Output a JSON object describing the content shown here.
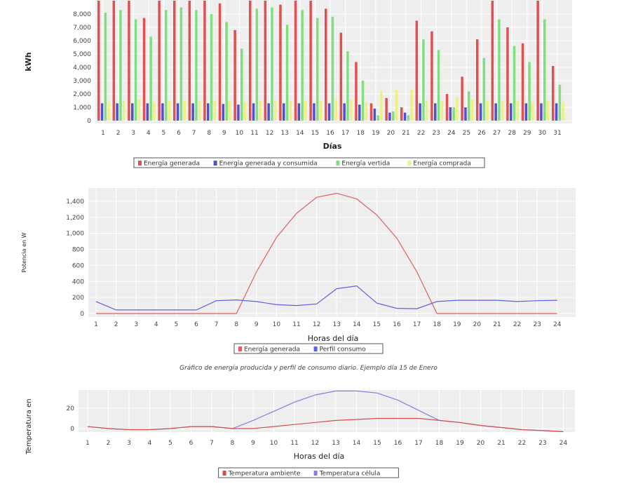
{
  "chart_data": [
    {
      "type": "bar",
      "xlabel": "Días",
      "ylabel": "kWh",
      "ylim": [
        0,
        9000
      ],
      "yticks": [
        "0",
        "1,000",
        "2,000",
        "3,000",
        "4,000",
        "5,000",
        "6,000",
        "7,000",
        "8,000"
      ],
      "categories": [
        "1",
        "2",
        "3",
        "4",
        "5",
        "6",
        "7",
        "8",
        "9",
        "10",
        "11",
        "12",
        "13",
        "14",
        "15",
        "16",
        "17",
        "18",
        "19",
        "20",
        "21",
        "22",
        "23",
        "24",
        "25",
        "26",
        "27",
        "28",
        "29",
        "30",
        "31"
      ],
      "series": [
        {
          "name": "Energía generada",
          "color": "#e05050",
          "values": [
            9000,
            9000,
            9000,
            7700,
            9000,
            9000,
            9000,
            9000,
            8800,
            6800,
            9000,
            9000,
            8700,
            9000,
            9000,
            8400,
            6600,
            4400,
            1300,
            1700,
            1000,
            7500,
            6700,
            2000,
            3300,
            6100,
            9000,
            7000,
            5800,
            9000,
            4100
          ]
        },
        {
          "name": "Energía generada y consumida",
          "color": "#5050d0",
          "values": [
            1300,
            1300,
            1300,
            1300,
            1300,
            1300,
            1300,
            1300,
            1250,
            1200,
            1300,
            1300,
            1300,
            1300,
            1300,
            1300,
            1300,
            1200,
            900,
            600,
            600,
            1300,
            1300,
            1000,
            1000,
            1300,
            1300,
            1300,
            1300,
            1300,
            1300
          ]
        },
        {
          "name": "Energía vertida",
          "color": "#80e080",
          "values": [
            8100,
            8300,
            7600,
            6300,
            8300,
            8500,
            8300,
            8000,
            7400,
            5400,
            8400,
            8500,
            7200,
            8300,
            7700,
            7800,
            5200,
            3000,
            400,
            700,
            400,
            6100,
            5300,
            1000,
            2200,
            4700,
            7600,
            5600,
            4400,
            7600,
            2700
          ]
        },
        {
          "name": "Energía comprada",
          "color": "#f0f080",
          "values": [
            1400,
            1500,
            1600,
            1400,
            1500,
            1500,
            1500,
            1500,
            1500,
            1400,
            1500,
            1500,
            1500,
            1500,
            1500,
            1600,
            1600,
            1400,
            2200,
            2300,
            2300,
            1500,
            1500,
            1800,
            1600,
            1500,
            1500,
            1500,
            1400,
            1500,
            1400
          ]
        }
      ]
    },
    {
      "type": "line",
      "xlabel": "Horas del día",
      "ylabel": "Potencia en W",
      "ylim": [
        0,
        1500
      ],
      "yticks": [
        "0",
        "200",
        "400",
        "600",
        "800",
        "1,000",
        "1,200",
        "1,400"
      ],
      "x": [
        "1",
        "2",
        "3",
        "4",
        "5",
        "6",
        "7",
        "8",
        "9",
        "10",
        "11",
        "12",
        "13",
        "14",
        "15",
        "16",
        "17",
        "18",
        "19",
        "20",
        "21",
        "22",
        "23",
        "24"
      ],
      "series": [
        {
          "name": "Energía generada",
          "color": "#e06060",
          "values": [
            0,
            0,
            0,
            0,
            0,
            0,
            0,
            0,
            520,
            950,
            1250,
            1450,
            1500,
            1430,
            1230,
            940,
            520,
            0,
            0,
            0,
            0,
            0,
            0,
            0
          ]
        },
        {
          "name": "Perfil consumo",
          "color": "#6060e0",
          "values": [
            150,
            45,
            45,
            45,
            45,
            45,
            160,
            170,
            150,
            110,
            100,
            120,
            310,
            345,
            130,
            65,
            60,
            150,
            165,
            165,
            165,
            150,
            160,
            165
          ]
        }
      ],
      "caption": "Gráfico de energía producida y perfil de consumo diario. Ejemplo día 15 de Enero"
    },
    {
      "type": "line",
      "xlabel": "Horas del día",
      "ylabel": "Temperatura en",
      "ylim": [
        -5,
        40
      ],
      "yticks": [
        "0",
        "20"
      ],
      "x": [
        "1",
        "2",
        "3",
        "4",
        "5",
        "6",
        "7",
        "8",
        "9",
        "10",
        "11",
        "12",
        "13",
        "14",
        "15",
        "16",
        "17",
        "18",
        "19",
        "20",
        "21",
        "22",
        "23",
        "24"
      ],
      "series": [
        {
          "name": "Temperatura ambiente",
          "color": "#d05050",
          "values": [
            2,
            0,
            -1,
            -1,
            0,
            2,
            2,
            0,
            0,
            2,
            4,
            6,
            8,
            9,
            10,
            10,
            10,
            8,
            6,
            3,
            1,
            -1,
            -2,
            -3
          ]
        },
        {
          "name": "Temperatura célula",
          "color": "#8080e0",
          "values": [
            2,
            0,
            -1,
            -1,
            0,
            2,
            2,
            0,
            8,
            17,
            26,
            33,
            37,
            37,
            35,
            28,
            18,
            8,
            6,
            3,
            1,
            -1,
            -2,
            -3
          ]
        }
      ]
    }
  ]
}
